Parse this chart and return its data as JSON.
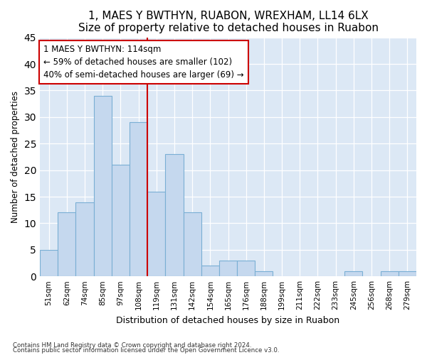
{
  "title1": "1, MAES Y BWTHYN, RUABON, WREXHAM, LL14 6LX",
  "title2": "Size of property relative to detached houses in Ruabon",
  "xlabel": "Distribution of detached houses by size in Ruabon",
  "ylabel": "Number of detached properties",
  "categories": [
    "51sqm",
    "62sqm",
    "74sqm",
    "85sqm",
    "97sqm",
    "108sqm",
    "119sqm",
    "131sqm",
    "142sqm",
    "154sqm",
    "165sqm",
    "176sqm",
    "188sqm",
    "199sqm",
    "211sqm",
    "222sqm",
    "233sqm",
    "245sqm",
    "256sqm",
    "268sqm",
    "279sqm"
  ],
  "values": [
    5,
    12,
    14,
    34,
    21,
    29,
    16,
    23,
    12,
    2,
    3,
    3,
    1,
    0,
    0,
    0,
    0,
    1,
    0,
    1,
    1
  ],
  "bar_color": "#c5d8ee",
  "bar_edge_color": "#7aafd4",
  "reference_line_index": 6,
  "annotation_line1": "1 MAES Y BWTHYN: 114sqm",
  "annotation_line2": "← 59% of detached houses are smaller (102)",
  "annotation_line3": "40% of semi-detached houses are larger (69) →",
  "annotation_box_color": "#ffffff",
  "annotation_border_color": "#cc0000",
  "ref_line_color": "#cc0000",
  "ylim": [
    0,
    45
  ],
  "yticks": [
    0,
    5,
    10,
    15,
    20,
    25,
    30,
    35,
    40,
    45
  ],
  "footnote1": "Contains HM Land Registry data © Crown copyright and database right 2024.",
  "footnote2": "Contains public sector information licensed under the Open Government Licence v3.0.",
  "plot_bg_color": "#dce8f5",
  "title1_fontsize": 11,
  "title2_fontsize": 9.5
}
